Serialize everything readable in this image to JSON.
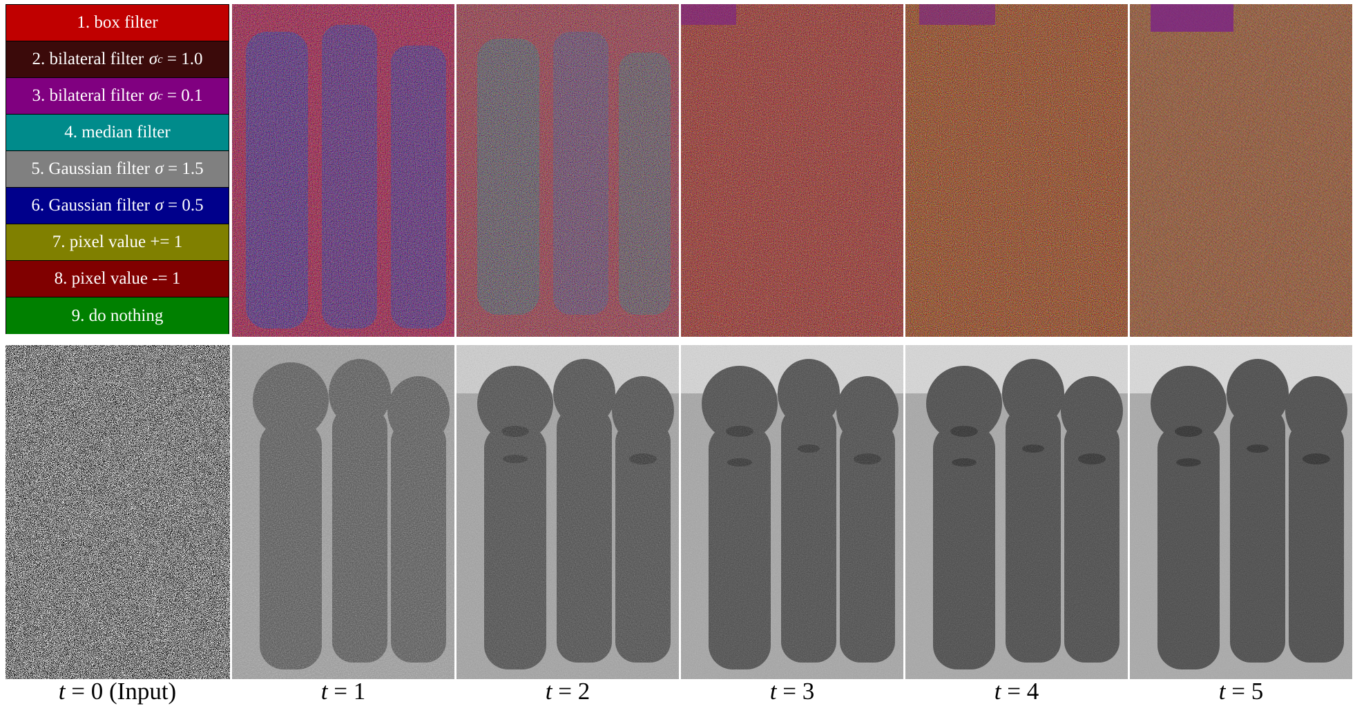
{
  "legend": {
    "items": [
      {
        "label": "1. box filter",
        "symbol": "",
        "sub": "",
        "value": "",
        "color": "#c00000"
      },
      {
        "label": "2. bilateral filter",
        "symbol": "σ",
        "sub": "c",
        "value": "= 1.0",
        "color": "#3b0a0a"
      },
      {
        "label": "3. bilateral filter",
        "symbol": "σ",
        "sub": "c",
        "value": "= 0.1",
        "color": "#800080"
      },
      {
        "label": "4. median filter",
        "symbol": "",
        "sub": "",
        "value": "",
        "color": "#008b8b"
      },
      {
        "label": "5. Gaussian filter",
        "symbol": "σ",
        "sub": "",
        "value": "= 1.5",
        "color": "#808080"
      },
      {
        "label": "6. Gaussian filter",
        "symbol": "σ",
        "sub": "",
        "value": "= 0.5",
        "color": "#00008b"
      },
      {
        "label": "7. pixel value += 1",
        "symbol": "",
        "sub": "",
        "value": "",
        "color": "#808000"
      },
      {
        "label": "8. pixel value -= 1",
        "symbol": "",
        "sub": "",
        "value": "",
        "color": "#800000"
      },
      {
        "label": "9. do nothing",
        "symbol": "",
        "sub": "",
        "value": "",
        "color": "#008000"
      }
    ]
  },
  "captions": [
    {
      "var": "t",
      "rest": " = 0 (Input)"
    },
    {
      "var": "t",
      "rest": " = 1"
    },
    {
      "var": "t",
      "rest": " = 2"
    },
    {
      "var": "t",
      "rest": " = 3"
    },
    {
      "var": "t",
      "rest": " = 4"
    },
    {
      "var": "t",
      "rest": " = 5"
    }
  ],
  "action_maps": {
    "steps": [
      1,
      2,
      3,
      4,
      5
    ],
    "dominant_actions": [
      "box filter",
      "bilateral filter σc = 1.0",
      "median filter",
      "Gaussian filter σ = 0.5"
    ]
  },
  "denoised_images": {
    "steps": [
      0,
      1,
      2,
      3,
      4,
      5
    ],
    "content": "three carved wooden statues"
  }
}
